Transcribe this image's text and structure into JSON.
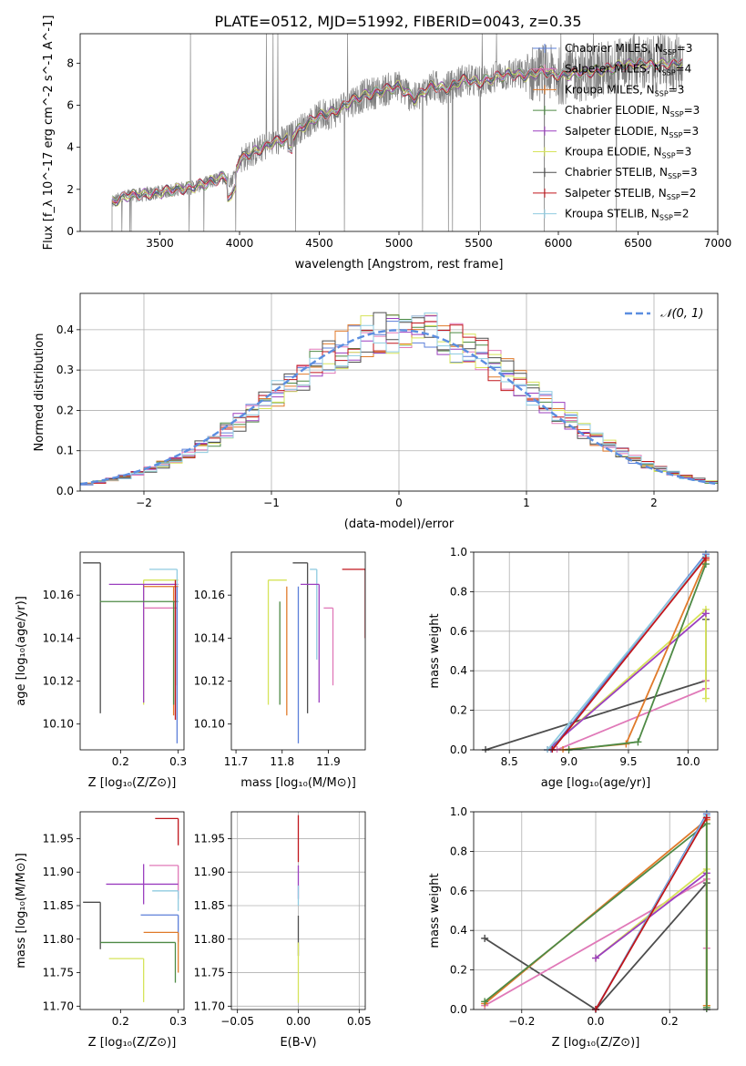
{
  "figure": {
    "title": "PLATE=0512, MJD=51992, FIBERID=0043, z=0.35"
  },
  "colors": {
    "Chabrier MILES": "#5b7fd9",
    "Salpeter MILES": "#e079b8",
    "Kroupa MILES": "#e07a2a",
    "Chabrier ELODIE": "#4e8a45",
    "Salpeter ELODIE": "#9b3fbf",
    "Kroupa ELODIE": "#d6e35a",
    "Chabrier STELIB": "#4d4d4d",
    "Salpeter STELIB": "#c0151b",
    "Kroupa STELIB": "#8fcbe0",
    "data": "#808080",
    "normal": "#5b8ee0"
  },
  "chart_data": [
    {
      "id": "spectrum",
      "type": "line",
      "xlabel": "wavelength [Angstrom, rest frame]",
      "ylabel": "Flux [f_λ 10^-17 erg cm^-2 s^-1 A^-1]",
      "xlim": [
        3000,
        7000
      ],
      "ylim": [
        0,
        9.4
      ],
      "xticks": [
        "3500",
        "4000",
        "4500",
        "5000",
        "5500",
        "6000",
        "6500",
        "7000"
      ],
      "yticks": [
        "0",
        "2",
        "4",
        "6",
        "8"
      ],
      "legend_placement": "upper right",
      "legend": [
        {
          "name": "Chabrier MILES",
          "nssp": "3"
        },
        {
          "name": "Salpeter MILES",
          "nssp": "4"
        },
        {
          "name": "Kroupa MILES",
          "nssp": "3"
        },
        {
          "name": "Chabrier ELODIE",
          "nssp": "3"
        },
        {
          "name": "Salpeter ELODIE",
          "nssp": "3"
        },
        {
          "name": "Kroupa ELODIE",
          "nssp": "3"
        },
        {
          "name": "Chabrier STELIB",
          "nssp": "3"
        },
        {
          "name": "Salpeter STELIB",
          "nssp": "2"
        },
        {
          "name": "Kroupa STELIB",
          "nssp": "2"
        }
      ],
      "continuum": {
        "x": [
          3200,
          3300,
          3400,
          3500,
          3600,
          3700,
          3800,
          3900,
          3950,
          4000,
          4100,
          4200,
          4300,
          4400,
          4500,
          4600,
          4700,
          4800,
          4900,
          5000,
          5100,
          5200,
          5300,
          5400,
          5500,
          5600,
          5700,
          5800,
          5900,
          6000,
          6100,
          6200,
          6300,
          6400,
          6500,
          6600,
          6700,
          6780
        ],
        "y": [
          1.4,
          1.7,
          1.75,
          1.85,
          2.0,
          2.1,
          2.3,
          2.6,
          2.4,
          3.4,
          3.8,
          4.2,
          4.4,
          5.0,
          5.5,
          5.7,
          6.2,
          6.5,
          6.7,
          6.9,
          6.3,
          6.9,
          6.8,
          7.2,
          7.1,
          7.3,
          7.5,
          7.4,
          7.6,
          7.4,
          7.5,
          7.6,
          7.7,
          7.9,
          8.0,
          7.9,
          8.0,
          8.0
        ]
      },
      "data_start": 3200,
      "data_end": 6780
    },
    {
      "id": "residuals",
      "type": "histogram",
      "xlabel": "(data-model)/error",
      "ylabel": "Normed distribution",
      "xlim": [
        -2.5,
        2.5
      ],
      "ylim": [
        0,
        0.49
      ],
      "xticks": [
        "−2",
        "−1",
        "0",
        "1",
        "2"
      ],
      "yticks": [
        "0.0",
        "0.1",
        "0.2",
        "0.3",
        "0.4"
      ],
      "grid": true,
      "legend": "𝒩(0, 1)",
      "legend_placement": "upper right",
      "bin_width": 0.1,
      "reference_curve": "normal(0,1)"
    },
    {
      "id": "age_vs_Z",
      "type": "errorbar",
      "xlabel": "Z [log₁₀(Z/Z⊙)]",
      "ylabel": "age  [log₁₀(age/yr)]",
      "xlim": [
        0.13,
        0.31
      ],
      "ylim": [
        10.088,
        10.18
      ],
      "xticks": [
        "0.2",
        "0.3"
      ],
      "yticks": [
        "10.10",
        "10.12",
        "10.14",
        "10.16"
      ],
      "points": [
        {
          "model": "Chabrier STELIB",
          "x": 0.165,
          "y": 10.175,
          "xerr": [
            0.03,
            0.0
          ],
          "yerr": [
            0.07,
            0.0
          ]
        },
        {
          "model": "Kroupa ELODIE",
          "x": 0.24,
          "y": 10.167,
          "xerr": [
            0.0,
            0.06
          ],
          "yerr": [
            0.058,
            0.0
          ]
        },
        {
          "model": "Salpeter ELODIE",
          "x": 0.24,
          "y": 10.165,
          "xerr": [
            0.06,
            0.06
          ],
          "yerr": [
            0.055,
            0.0
          ]
        },
        {
          "model": "Kroupa STELIB",
          "x": 0.298,
          "y": 10.172,
          "xerr": [
            0.048,
            0.0
          ],
          "yerr": [
            0.042,
            0.0
          ]
        },
        {
          "model": "Kroupa MILES",
          "x": 0.292,
          "y": 10.164,
          "xerr": [
            0.052,
            0.008
          ],
          "yerr": [
            0.06,
            0.0
          ]
        },
        {
          "model": "Salpeter MILES",
          "x": 0.298,
          "y": 10.154,
          "xerr": [
            0.058,
            0.0
          ],
          "yerr": [
            0.036,
            0.0
          ]
        },
        {
          "model": "Chabrier ELODIE",
          "x": 0.292,
          "y": 10.157,
          "xerr": [
            0.128,
            0.008
          ],
          "yerr": [
            0.048,
            0.0
          ]
        },
        {
          "model": "Chabrier MILES",
          "x": 0.298,
          "y": 10.164,
          "xerr": [
            0.0,
            0.0
          ],
          "yerr": [
            0.073,
            0.0
          ]
        },
        {
          "model": "Salpeter STELIB",
          "x": 0.295,
          "y": 10.167,
          "xerr": [
            0.0,
            0.0
          ],
          "yerr": [
            0.065,
            0.0
          ]
        }
      ]
    },
    {
      "id": "age_vs_mass",
      "type": "errorbar",
      "xlabel": "mass [log₁₀(M/M⊙)]",
      "ylabel": "",
      "xlim": [
        11.69,
        11.98
      ],
      "ylim": [
        10.088,
        10.18
      ],
      "xticks": [
        "11.7",
        "11.8",
        "11.9"
      ],
      "yticks": [
        "10.10",
        "10.12",
        "10.14",
        "10.16"
      ],
      "points": [
        {
          "model": "Chabrier STELIB",
          "x": 11.855,
          "y": 10.175,
          "xerr": [
            0.032,
            0.0
          ],
          "yerr": [
            0.07,
            0.0
          ]
        },
        {
          "model": "Salpeter STELIB",
          "x": 11.98,
          "y": 10.172,
          "xerr": [
            0.05,
            0.0
          ],
          "yerr": [
            0.032,
            0.0
          ]
        },
        {
          "model": "Kroupa STELIB",
          "x": 11.875,
          "y": 10.172,
          "xerr": [
            0.015,
            0.0
          ],
          "yerr": [
            0.042,
            0.0
          ]
        },
        {
          "model": "Kroupa ELODIE",
          "x": 11.77,
          "y": 10.167,
          "xerr": [
            0.0,
            0.04
          ],
          "yerr": [
            0.058,
            0.0
          ]
        },
        {
          "model": "Salpeter ELODIE",
          "x": 11.88,
          "y": 10.165,
          "xerr": [
            0.04,
            0.0
          ],
          "yerr": [
            0.055,
            0.0
          ]
        },
        {
          "model": "Kroupa MILES",
          "x": 11.81,
          "y": 10.164,
          "xerr": [
            0.0,
            0.0
          ],
          "yerr": [
            0.06,
            0.0
          ]
        },
        {
          "model": "Chabrier ELODIE",
          "x": 11.795,
          "y": 10.157,
          "xerr": [
            0.0,
            0.0
          ],
          "yerr": [
            0.048,
            0.0
          ]
        },
        {
          "model": "Chabrier MILES",
          "x": 11.835,
          "y": 10.164,
          "xerr": [
            0.0,
            0.0
          ],
          "yerr": [
            0.073,
            0.0
          ]
        },
        {
          "model": "Salpeter MILES",
          "x": 11.91,
          "y": 10.154,
          "xerr": [
            0.02,
            0.0
          ],
          "yerr": [
            0.036,
            0.0
          ]
        }
      ]
    },
    {
      "id": "massweight_vs_age",
      "type": "line",
      "xlabel": "age  [log₁₀(age/yr)]",
      "ylabel": "mass weight",
      "xlim": [
        8.2,
        10.25
      ],
      "ylim": [
        0,
        1.0
      ],
      "xticks": [
        "8.5",
        "9.0",
        "9.5",
        "10.0"
      ],
      "yticks": [
        "0.0",
        "0.2",
        "0.4",
        "0.6",
        "0.8",
        "1.0"
      ],
      "grid": true,
      "series": [
        {
          "model": "Chabrier STELIB",
          "x": [
            8.3,
            10.15,
            10.15
          ],
          "y": [
            0.0,
            0.35,
            0.66
          ]
        },
        {
          "model": "Salpeter MILES",
          "x": [
            8.9,
            10.15,
            10.15
          ],
          "y": [
            0.0,
            0.31,
            0.35
          ]
        },
        {
          "model": "Kroupa ELODIE",
          "x": [
            8.82,
            10.15,
            10.15
          ],
          "y": [
            0.0,
            0.71,
            0.26
          ]
        },
        {
          "model": "Salpeter ELODIE",
          "x": [
            8.82,
            10.15
          ],
          "y": [
            0.0,
            0.69
          ]
        },
        {
          "model": "Kroupa MILES",
          "x": [
            8.95,
            9.48,
            10.15
          ],
          "y": [
            0.0,
            0.03,
            0.96
          ]
        },
        {
          "model": "Chabrier ELODIE",
          "x": [
            9.0,
            9.58,
            10.15
          ],
          "y": [
            0.0,
            0.04,
            0.94
          ]
        },
        {
          "model": "Chabrier MILES",
          "x": [
            8.85,
            10.15
          ],
          "y": [
            0.0,
            0.99
          ]
        },
        {
          "model": "Kroupa STELIB",
          "x": [
            8.82,
            10.15
          ],
          "y": [
            0.0,
            0.98
          ]
        },
        {
          "model": "Salpeter STELIB",
          "x": [
            8.86,
            10.15
          ],
          "y": [
            0.0,
            0.97
          ]
        }
      ]
    },
    {
      "id": "mass_vs_Z",
      "type": "errorbar",
      "xlabel": "Z [log₁₀(Z/Z⊙)]",
      "ylabel": "mass [log₁₀(M/M⊙)]",
      "xlim": [
        0.13,
        0.31
      ],
      "ylim": [
        11.695,
        11.99
      ],
      "xticks": [
        "0.2",
        "0.3"
      ],
      "yticks": [
        "11.70",
        "11.75",
        "11.80",
        "11.85",
        "11.90",
        "11.95"
      ],
      "points": [
        {
          "model": "Salpeter STELIB",
          "x": 0.3,
          "y": 11.98,
          "xerr": [
            0.04,
            0.0
          ],
          "yerr": [
            0.04,
            0.0
          ]
        },
        {
          "model": "Salpeter MILES",
          "x": 0.3,
          "y": 11.91,
          "xerr": [
            0.05,
            0.0
          ],
          "yerr": [
            0.05,
            0.0
          ]
        },
        {
          "model": "Salpeter ELODIE",
          "x": 0.24,
          "y": 11.882,
          "xerr": [
            0.065,
            0.06
          ],
          "yerr": [
            0.03,
            0.03
          ]
        },
        {
          "model": "Kroupa STELIB",
          "x": 0.3,
          "y": 11.872,
          "xerr": [
            0.045,
            0.0
          ],
          "yerr": [
            0.03,
            0.0
          ]
        },
        {
          "model": "Chabrier STELIB",
          "x": 0.165,
          "y": 11.855,
          "xerr": [
            0.03,
            0.0
          ],
          "yerr": [
            0.07,
            0.0
          ]
        },
        {
          "model": "Chabrier MILES",
          "x": 0.3,
          "y": 11.836,
          "xerr": [
            0.065,
            0.0
          ],
          "yerr": [
            0.04,
            0.0
          ]
        },
        {
          "model": "Kroupa MILES",
          "x": 0.3,
          "y": 11.81,
          "xerr": [
            0.06,
            0.0
          ],
          "yerr": [
            0.06,
            0.0
          ]
        },
        {
          "model": "Chabrier ELODIE",
          "x": 0.295,
          "y": 11.795,
          "xerr": [
            0.13,
            0.0
          ],
          "yerr": [
            0.06,
            0.0
          ]
        },
        {
          "model": "Kroupa ELODIE",
          "x": 0.24,
          "y": 11.771,
          "xerr": [
            0.06,
            0.0
          ],
          "yerr": [
            0.065,
            0.0
          ]
        }
      ]
    },
    {
      "id": "mass_vs_EBV",
      "type": "errorbar",
      "xlabel": "E(B-V)",
      "ylabel": "",
      "xlim": [
        -0.055,
        0.055
      ],
      "ylim": [
        11.695,
        11.99
      ],
      "xticks": [
        "−0.05",
        "0.00",
        "0.05"
      ],
      "yticks": [
        "11.70",
        "11.75",
        "11.80",
        "11.85",
        "11.90",
        "11.95"
      ],
      "grid": true,
      "points": [
        {
          "model": "Salpeter STELIB",
          "x": 0.0,
          "y": 11.95,
          "yerr": [
            0.035,
            0.035
          ]
        },
        {
          "model": "Salpeter ELODIE",
          "x": 0.0,
          "y": 11.885,
          "yerr": [
            0.025,
            0.025
          ]
        },
        {
          "model": "Kroupa STELIB",
          "x": 0.0,
          "y": 11.865,
          "yerr": [
            0.015,
            0.015
          ]
        },
        {
          "model": "Chabrier STELIB",
          "x": 0.0,
          "y": 11.805,
          "yerr": [
            0.03,
            0.03
          ]
        },
        {
          "model": "Kroupa ELODIE",
          "x": 0.0,
          "y": 11.755,
          "yerr": [
            0.05,
            0.04
          ]
        }
      ]
    },
    {
      "id": "massweight_vs_Z",
      "type": "line",
      "xlabel": "Z [log₁₀(Z/Z⊙)]",
      "ylabel": "mass weight",
      "xlim": [
        -0.33,
        0.33
      ],
      "ylim": [
        0,
        1.0
      ],
      "xticks": [
        "−0.2",
        "0.0",
        "0.2"
      ],
      "yticks": [
        "0.0",
        "0.2",
        "0.4",
        "0.6",
        "0.8",
        "1.0"
      ],
      "grid": true,
      "series": [
        {
          "model": "Chabrier STELIB",
          "x": [
            -0.3,
            0.0,
            0.3,
            0.3
          ],
          "y": [
            0.36,
            0.0,
            0.64,
            0.0
          ]
        },
        {
          "model": "Salpeter MILES",
          "x": [
            -0.3,
            0.3,
            0.3
          ],
          "y": [
            0.02,
            0.66,
            0.31
          ]
        },
        {
          "model": "Kroupa ELODIE",
          "x": [
            0.0,
            0.3,
            0.3
          ],
          "y": [
            0.26,
            0.71,
            0.02
          ]
        },
        {
          "model": "Salpeter ELODIE",
          "x": [
            0.0,
            0.3
          ],
          "y": [
            0.26,
            0.69
          ]
        },
        {
          "model": "Kroupa MILES",
          "x": [
            -0.3,
            0.3,
            0.3
          ],
          "y": [
            0.03,
            0.96,
            0.02
          ]
        },
        {
          "model": "Chabrier ELODIE",
          "x": [
            -0.3,
            0.3,
            0.3
          ],
          "y": [
            0.04,
            0.94,
            0.01
          ]
        },
        {
          "model": "Chabrier MILES",
          "x": [
            0.0,
            0.3
          ],
          "y": [
            0.0,
            0.99
          ]
        },
        {
          "model": "Kroupa STELIB",
          "x": [
            0.0,
            0.3
          ],
          "y": [
            0.0,
            0.98
          ]
        },
        {
          "model": "Salpeter STELIB",
          "x": [
            0.0,
            0.3
          ],
          "y": [
            0.0,
            0.97
          ]
        }
      ]
    }
  ]
}
